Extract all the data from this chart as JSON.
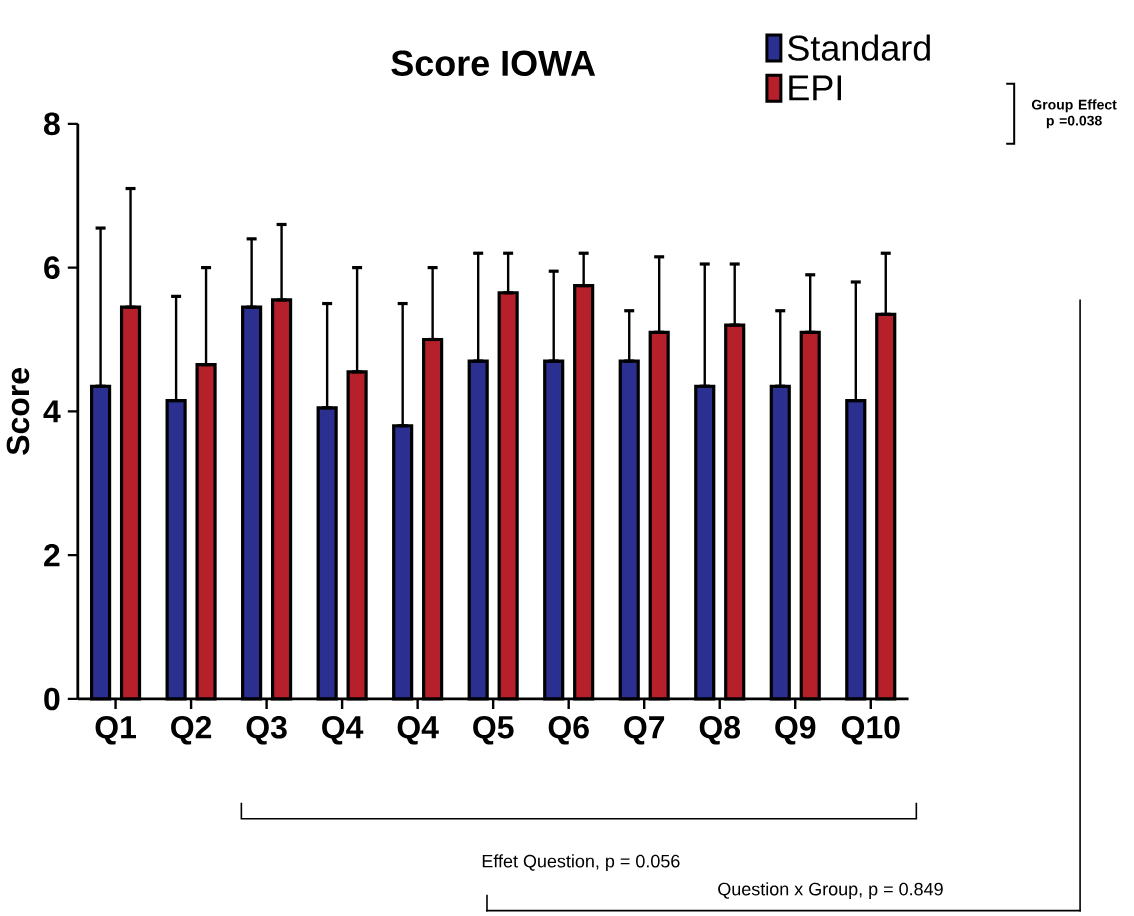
{
  "chart_data": {
    "type": "bar",
    "title": "Score IOWA",
    "ylabel": "Score",
    "categories": [
      "Q1",
      "Q2",
      "Q3",
      "Q4",
      "Q4",
      "Q5",
      "Q6",
      "Q7",
      "Q8",
      "Q9",
      "Q10"
    ],
    "series": [
      {
        "name": "Standard",
        "color": "#2b2f8f",
        "values": [
          4.35,
          4.15,
          5.45,
          4.05,
          3.8,
          4.7,
          4.7,
          4.7,
          4.35,
          4.35,
          4.15
        ],
        "errors": [
          [
            4.35,
            6.55
          ],
          [
            4.15,
            5.6
          ],
          [
            5.45,
            6.4
          ],
          [
            4.05,
            5.5
          ],
          [
            3.8,
            5.5
          ],
          [
            4.7,
            6.2
          ],
          [
            4.7,
            5.95
          ],
          [
            4.7,
            5.4
          ],
          [
            4.35,
            6.05
          ],
          [
            4.35,
            5.4
          ],
          [
            4.15,
            5.8
          ]
        ]
      },
      {
        "name": "EPI",
        "color": "#b5202a",
        "values": [
          5.45,
          4.65,
          5.55,
          4.55,
          5.0,
          5.65,
          5.75,
          5.1,
          5.2,
          5.1,
          5.35
        ],
        "errors": [
          [
            5.45,
            7.1
          ],
          [
            4.65,
            6.0
          ],
          [
            5.55,
            6.6
          ],
          [
            4.55,
            6.0
          ],
          [
            5.0,
            6.0
          ],
          [
            5.65,
            6.2
          ],
          [
            5.75,
            6.2
          ],
          [
            5.1,
            6.15
          ],
          [
            5.2,
            6.05
          ],
          [
            5.1,
            5.9
          ],
          [
            5.35,
            6.2
          ]
        ]
      }
    ],
    "ylim": [
      0,
      8
    ],
    "yticks": [
      0,
      2,
      4,
      6,
      8
    ],
    "grid": false,
    "legend": "top right",
    "annotations": [
      "Group Effect p =0.038",
      "Effet Question, p = 0.056",
      "Question x Group, p = 0.849"
    ]
  }
}
